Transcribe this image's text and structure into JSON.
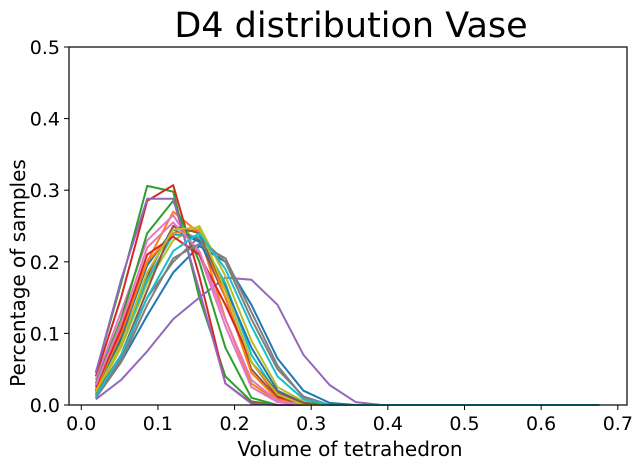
{
  "chart_data": {
    "type": "line",
    "title": "D4 distribution Vase",
    "xlabel": "Volume of tetrahedron",
    "ylabel": "Percentage of samples",
    "xlim": [
      -0.016,
      0.712
    ],
    "ylim": [
      0.0,
      0.5
    ],
    "xticks": [
      "0.0",
      "0.1",
      "0.2",
      "0.3",
      "0.4",
      "0.5",
      "0.6",
      "0.7"
    ],
    "xtick_values": [
      0.0,
      0.1,
      0.2,
      0.3,
      0.4,
      0.5,
      0.6,
      0.7
    ],
    "yticks": [
      "0.0",
      "0.1",
      "0.2",
      "0.3",
      "0.4",
      "0.5"
    ],
    "ytick_values": [
      0.0,
      0.1,
      0.2,
      0.3,
      0.4,
      0.5
    ],
    "grid": false,
    "x": [
      0.019,
      0.052,
      0.086,
      0.12,
      0.154,
      0.188,
      0.222,
      0.256,
      0.29,
      0.324,
      0.358,
      0.392,
      0.426,
      0.46,
      0.494,
      0.528,
      0.562,
      0.596,
      0.63,
      0.676
    ],
    "series": [
      {
        "color": "#1f77b4",
        "values": [
          0.01,
          0.06,
          0.125,
          0.185,
          0.222,
          0.2,
          0.14,
          0.065,
          0.02,
          0.003,
          0,
          0,
          0,
          0,
          0,
          0,
          0,
          0,
          0,
          0
        ]
      },
      {
        "color": "#ff7f0e",
        "values": [
          0.03,
          0.11,
          0.2,
          0.27,
          0.24,
          0.12,
          0.03,
          0.005,
          0,
          0,
          0,
          0,
          0,
          0,
          0,
          0,
          0,
          0,
          0,
          0
        ]
      },
      {
        "color": "#2ca02c",
        "values": [
          0.045,
          0.17,
          0.306,
          0.298,
          0.15,
          0.04,
          0.005,
          0,
          0,
          0,
          0,
          0,
          0,
          0,
          0,
          0,
          0,
          0,
          0,
          0
        ]
      },
      {
        "color": "#d62728",
        "values": [
          0.04,
          0.15,
          0.285,
          0.307,
          0.18,
          0.03,
          0.003,
          0,
          0,
          0,
          0,
          0,
          0,
          0,
          0,
          0,
          0,
          0,
          0,
          0
        ]
      },
      {
        "color": "#9467bd",
        "values": [
          0.008,
          0.035,
          0.075,
          0.12,
          0.15,
          0.178,
          0.175,
          0.14,
          0.07,
          0.028,
          0.004,
          0,
          0,
          0,
          0,
          0,
          0,
          0,
          0,
          0
        ]
      },
      {
        "color": "#8c564b",
        "values": [
          0.02,
          0.09,
          0.18,
          0.25,
          0.23,
          0.15,
          0.05,
          0.01,
          0,
          0,
          0,
          0,
          0,
          0,
          0,
          0,
          0,
          0,
          0,
          0
        ]
      },
      {
        "color": "#e377c2",
        "values": [
          0.035,
          0.13,
          0.23,
          0.265,
          0.21,
          0.11,
          0.025,
          0.004,
          0,
          0,
          0,
          0,
          0,
          0,
          0,
          0,
          0,
          0,
          0,
          0
        ]
      },
      {
        "color": "#7f7f7f",
        "values": [
          0.012,
          0.065,
          0.15,
          0.2,
          0.235,
          0.2,
          0.12,
          0.05,
          0.012,
          0,
          0,
          0,
          0,
          0,
          0,
          0,
          0,
          0,
          0,
          0
        ]
      },
      {
        "color": "#bcbd22",
        "values": [
          0.015,
          0.08,
          0.17,
          0.23,
          0.25,
          0.18,
          0.09,
          0.025,
          0.005,
          0,
          0,
          0,
          0,
          0,
          0,
          0,
          0,
          0,
          0,
          0
        ]
      },
      {
        "color": "#17becf",
        "values": [
          0.018,
          0.085,
          0.175,
          0.238,
          0.235,
          0.17,
          0.07,
          0.015,
          0.002,
          0,
          0,
          0,
          0,
          0,
          0,
          0,
          0,
          0,
          0,
          0
        ]
      },
      {
        "color": "#1f77b4",
        "values": [
          0.02,
          0.095,
          0.195,
          0.245,
          0.228,
          0.165,
          0.08,
          0.02,
          0.003,
          0,
          0,
          0,
          0,
          0,
          0,
          0,
          0,
          0,
          0,
          0
        ]
      },
      {
        "color": "#ff7f0e",
        "values": [
          0.022,
          0.1,
          0.2,
          0.24,
          0.245,
          0.15,
          0.045,
          0.008,
          0,
          0,
          0,
          0,
          0,
          0,
          0,
          0,
          0,
          0,
          0,
          0
        ]
      },
      {
        "color": "#2ca02c",
        "values": [
          0.03,
          0.12,
          0.24,
          0.285,
          0.2,
          0.08,
          0.01,
          0,
          0,
          0,
          0,
          0,
          0,
          0,
          0,
          0,
          0,
          0,
          0,
          0
        ]
      },
      {
        "color": "#d62728",
        "values": [
          0.025,
          0.105,
          0.21,
          0.235,
          0.21,
          0.14,
          0.06,
          0.012,
          0,
          0,
          0,
          0,
          0,
          0,
          0,
          0,
          0,
          0,
          0,
          0
        ]
      },
      {
        "color": "#9467bd",
        "values": [
          0.045,
          0.175,
          0.288,
          0.288,
          0.16,
          0.03,
          0.002,
          0,
          0,
          0,
          0,
          0,
          0,
          0,
          0,
          0,
          0,
          0,
          0,
          0
        ]
      },
      {
        "color": "#8c564b",
        "values": [
          0.015,
          0.07,
          0.16,
          0.25,
          0.24,
          0.16,
          0.06,
          0.018,
          0.003,
          0,
          0,
          0,
          0,
          0,
          0,
          0,
          0,
          0,
          0,
          0
        ]
      },
      {
        "color": "#e377c2",
        "values": [
          0.028,
          0.115,
          0.22,
          0.255,
          0.215,
          0.12,
          0.035,
          0.006,
          0,
          0,
          0,
          0,
          0,
          0,
          0,
          0,
          0,
          0,
          0,
          0
        ]
      },
      {
        "color": "#7f7f7f",
        "values": [
          0.01,
          0.06,
          0.14,
          0.205,
          0.225,
          0.205,
          0.13,
          0.055,
          0.01,
          0,
          0,
          0,
          0,
          0,
          0,
          0,
          0,
          0,
          0,
          0
        ]
      },
      {
        "color": "#bcbd22",
        "values": [
          0.018,
          0.085,
          0.185,
          0.245,
          0.248,
          0.16,
          0.06,
          0.015,
          0,
          0,
          0,
          0,
          0,
          0,
          0,
          0,
          0,
          0,
          0,
          0
        ]
      },
      {
        "color": "#17becf",
        "values": [
          0.012,
          0.07,
          0.15,
          0.215,
          0.24,
          0.19,
          0.11,
          0.04,
          0.008,
          0,
          0,
          0,
          0,
          0,
          0,
          0,
          0,
          0,
          0,
          0
        ]
      }
    ]
  }
}
